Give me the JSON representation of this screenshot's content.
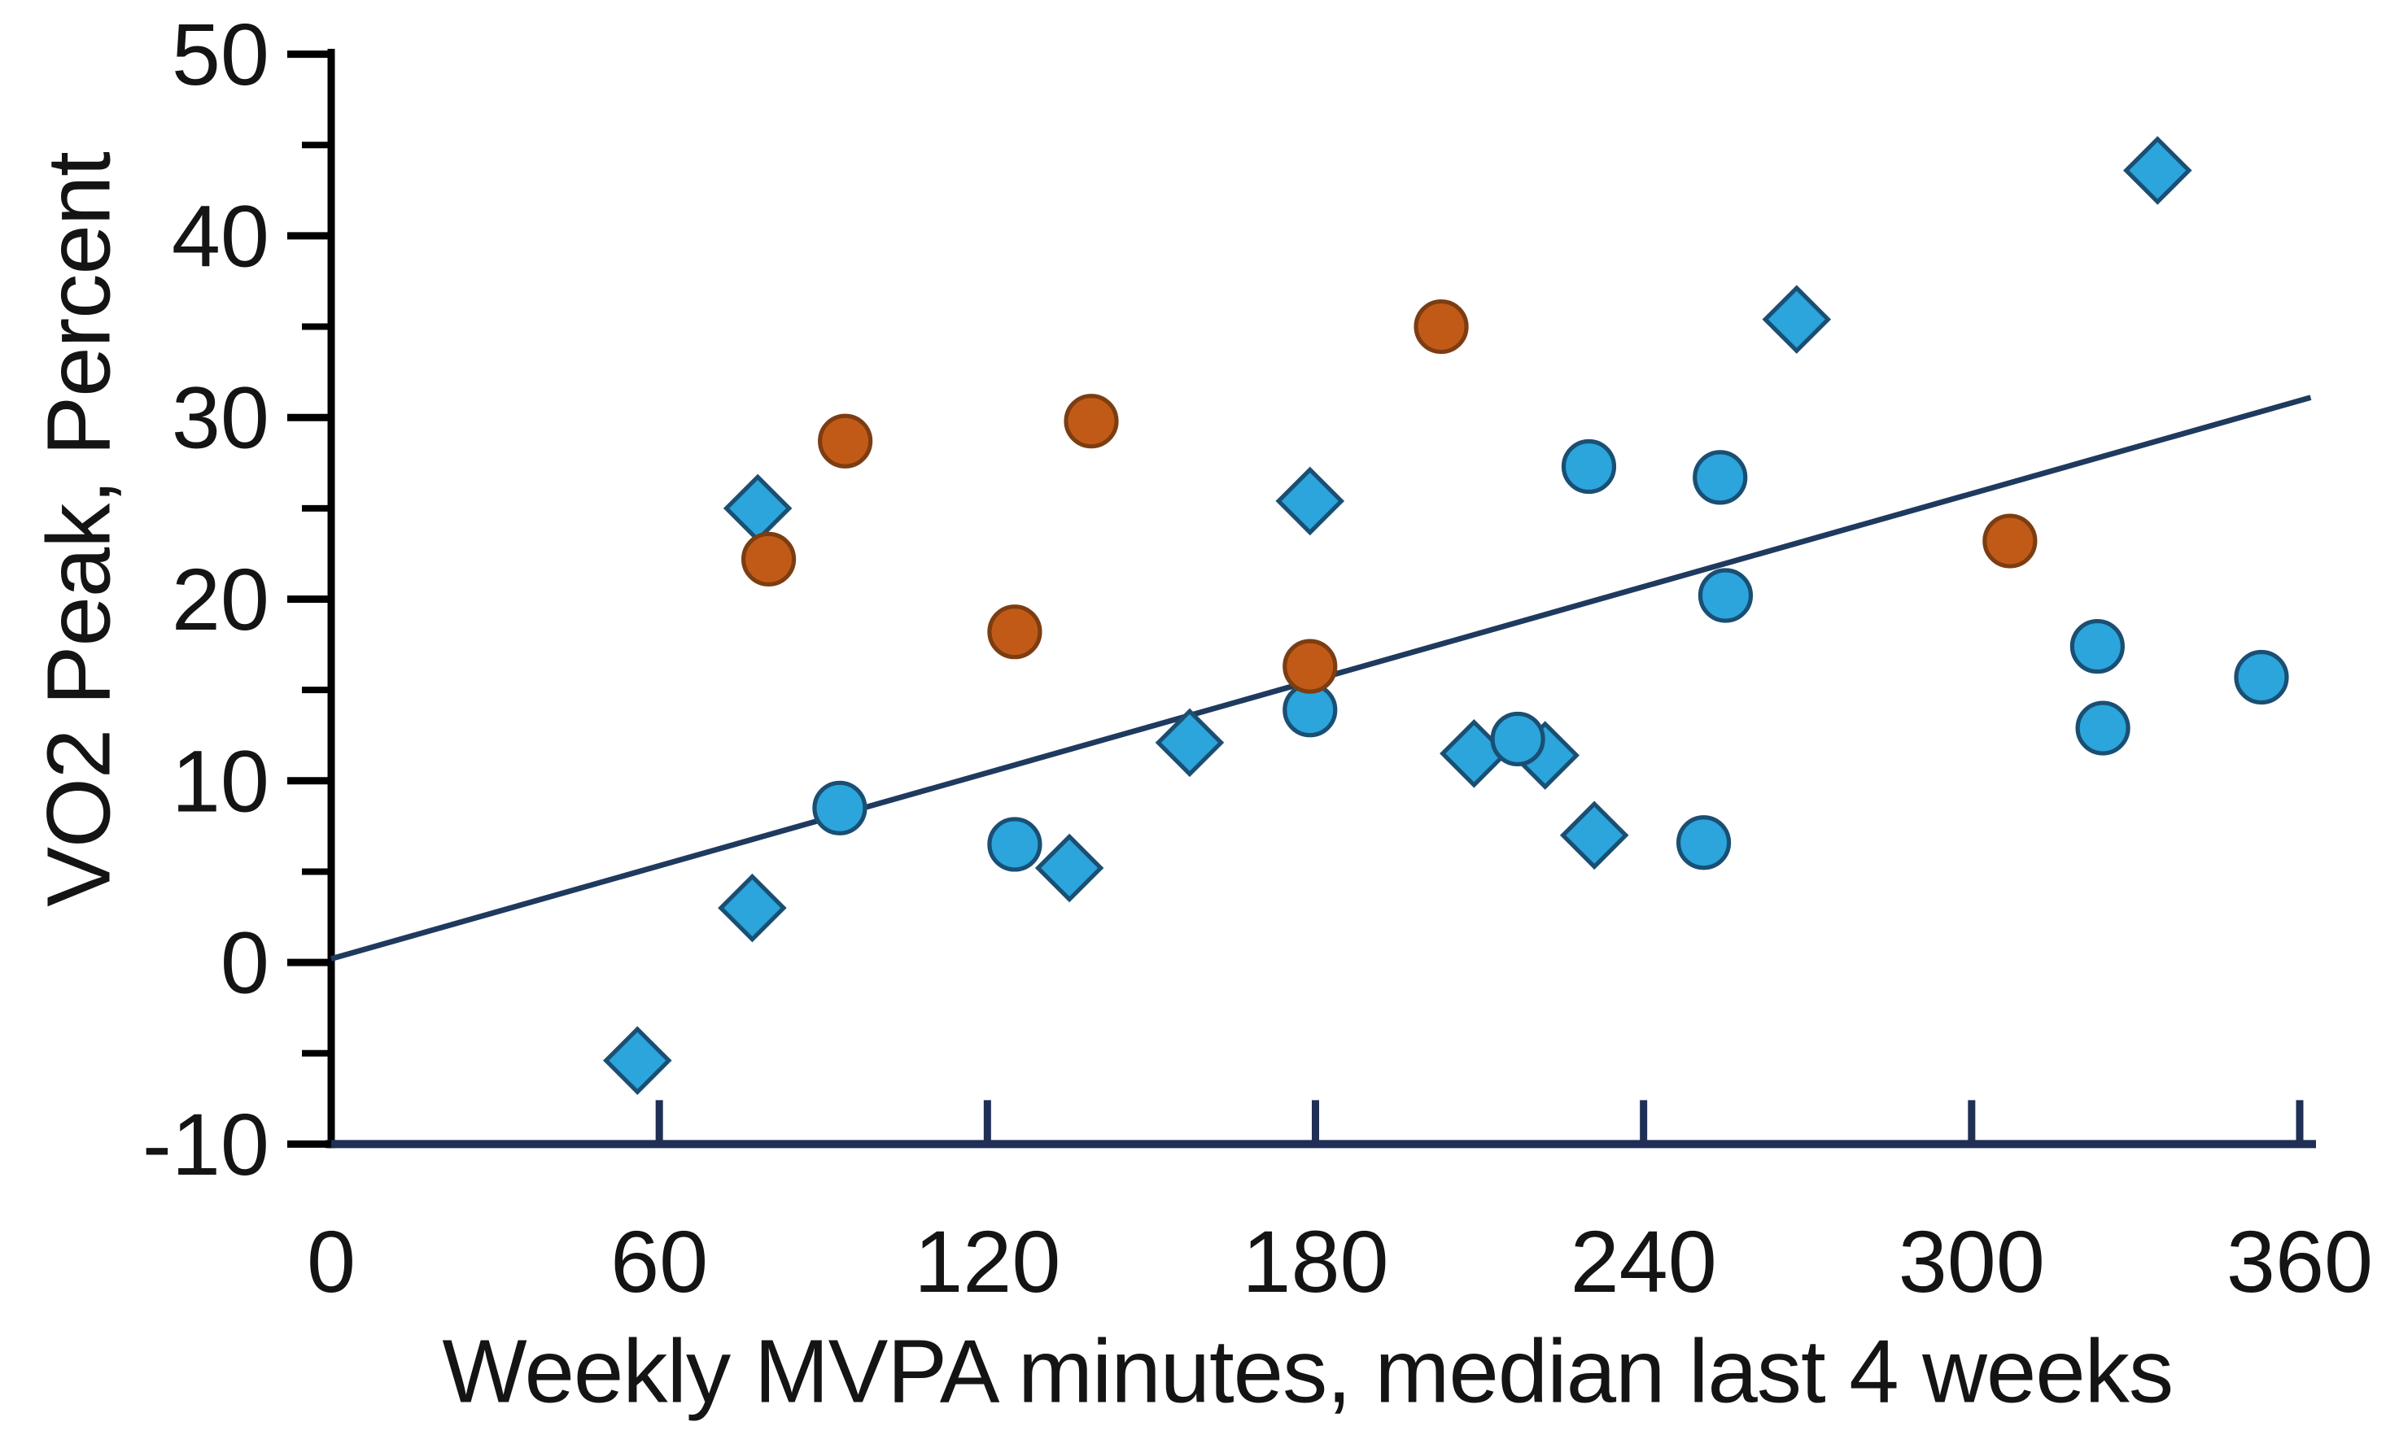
{
  "figure": {
    "background": "#ffffff",
    "text_color": "#141414"
  },
  "chart_data": {
    "type": "scatter",
    "title": "",
    "xlabel": "Weekly MVPA minutes, median last 4 weeks",
    "ylabel": "VO2 Peak, Percent",
    "xlim": [
      0,
      360
    ],
    "ylim": [
      -10,
      50
    ],
    "x_tick_labels": [
      0,
      60,
      120,
      180,
      240,
      300,
      360
    ],
    "y_tick_labels": [
      50,
      40,
      30,
      20,
      10,
      0,
      -10
    ],
    "y_minor_ticks": [
      45,
      35,
      25,
      15,
      5,
      -5
    ],
    "grid": false,
    "legend": "none",
    "axis_color_x": "#1f2f55",
    "axis_color_y": "#000000",
    "series": [
      {
        "name": "blue-diamonds",
        "marker": "diamond",
        "fill": "#2BA5DC",
        "stroke": "#1A4F73",
        "points": [
          [
            56,
            -5.4
          ],
          [
            77,
            3.0
          ],
          [
            78,
            25.0
          ],
          [
            135,
            5.2
          ],
          [
            157,
            12.1
          ],
          [
            179,
            25.4
          ],
          [
            209,
            11.5
          ],
          [
            222,
            11.4
          ],
          [
            231,
            7.0
          ],
          [
            268,
            35.4
          ],
          [
            334,
            43.6
          ]
        ]
      },
      {
        "name": "blue-circles",
        "marker": "circle",
        "fill": "#2BA5DC",
        "stroke": "#1A4F73",
        "points": [
          [
            93,
            8.5
          ],
          [
            125,
            6.5
          ],
          [
            179,
            13.9
          ],
          [
            217,
            12.3
          ],
          [
            230,
            27.3
          ],
          [
            251,
            6.6
          ],
          [
            254,
            26.7
          ],
          [
            255,
            20.2
          ],
          [
            323,
            17.4
          ],
          [
            324,
            12.9
          ],
          [
            353,
            15.7
          ]
        ]
      },
      {
        "name": "orange-circles",
        "marker": "circle",
        "fill": "#C25A17",
        "stroke": "#7C3D12",
        "points": [
          [
            80,
            22.2
          ],
          [
            94,
            28.7
          ],
          [
            125,
            18.2
          ],
          [
            139,
            29.8
          ],
          [
            179,
            16.3
          ],
          [
            203,
            35.0
          ],
          [
            307,
            23.2
          ]
        ]
      }
    ],
    "trendline": {
      "x1": 0,
      "y1": 0.2,
      "x2": 362,
      "y2": 31.1,
      "color": "#1F3A5F"
    }
  }
}
